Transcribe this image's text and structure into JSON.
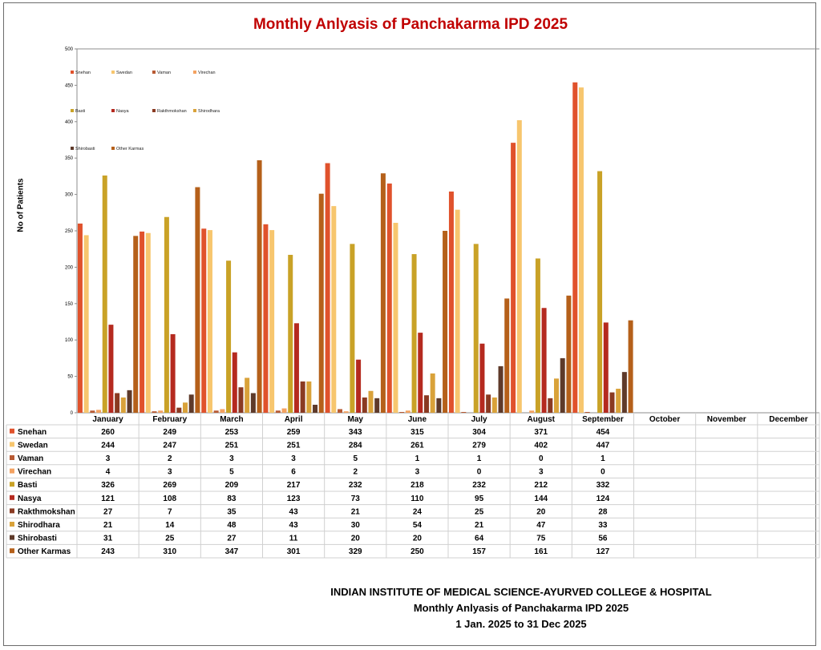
{
  "chart_data": {
    "type": "bar",
    "title": "Monthly Anlyasis of Panchakarma IPD  2025",
    "xlabel": "",
    "ylabel": "No of Patients",
    "ylim": [
      0,
      500
    ],
    "yticks": [
      0,
      50,
      100,
      150,
      200,
      250,
      300,
      350,
      400,
      450,
      500
    ],
    "categories": [
      "January",
      "February",
      "March",
      "April",
      "May",
      "June",
      "July",
      "August",
      "September",
      "October",
      "November",
      "December"
    ],
    "series": [
      {
        "name": "Snehan",
        "color": "#e0522c",
        "values": [
          260,
          249,
          253,
          259,
          343,
          315,
          304,
          371,
          454,
          null,
          null,
          null
        ]
      },
      {
        "name": "Swedan",
        "color": "#f7c66e",
        "values": [
          244,
          247,
          251,
          251,
          284,
          261,
          279,
          402,
          447,
          null,
          null,
          null
        ]
      },
      {
        "name": "Vaman",
        "color": "#b85a33",
        "values": [
          3,
          2,
          3,
          3,
          5,
          1,
          1,
          0,
          1,
          null,
          null,
          null
        ]
      },
      {
        "name": "Virechan",
        "color": "#f4a261",
        "values": [
          4,
          3,
          5,
          6,
          2,
          3,
          0,
          3,
          0,
          null,
          null,
          null
        ]
      },
      {
        "name": "Basti",
        "color": "#c9a227",
        "values": [
          326,
          269,
          209,
          217,
          232,
          218,
          232,
          212,
          332,
          null,
          null,
          null
        ]
      },
      {
        "name": "Nasya",
        "color": "#b52a1f",
        "values": [
          121,
          108,
          83,
          123,
          73,
          110,
          95,
          144,
          124,
          null,
          null,
          null
        ]
      },
      {
        "name": "Rakthmokshan",
        "color": "#8a3a22",
        "values": [
          27,
          7,
          35,
          43,
          21,
          24,
          25,
          20,
          28,
          null,
          null,
          null
        ]
      },
      {
        "name": "Shirodhara",
        "color": "#d9a23a",
        "values": [
          21,
          14,
          48,
          43,
          30,
          54,
          21,
          47,
          33,
          null,
          null,
          null
        ]
      },
      {
        "name": "Shirobasti",
        "color": "#5e3a2a",
        "values": [
          31,
          25,
          27,
          11,
          20,
          20,
          64,
          75,
          56,
          null,
          null,
          null
        ]
      },
      {
        "name": "Other Karmas",
        "color": "#b5601a",
        "values": [
          243,
          310,
          347,
          301,
          329,
          250,
          157,
          161,
          127,
          null,
          null,
          null
        ]
      }
    ],
    "legend_position": "top-left"
  },
  "footer": {
    "line1": "INDIAN INSTITUTE OF MEDICAL SCIENCE-AYURVED COLLEGE & HOSPITAL",
    "line2": "Monthly Anlyasis of Panchakarma  IPD   2025",
    "line3": "1 Jan. 2025 to 31 Dec 2025"
  }
}
